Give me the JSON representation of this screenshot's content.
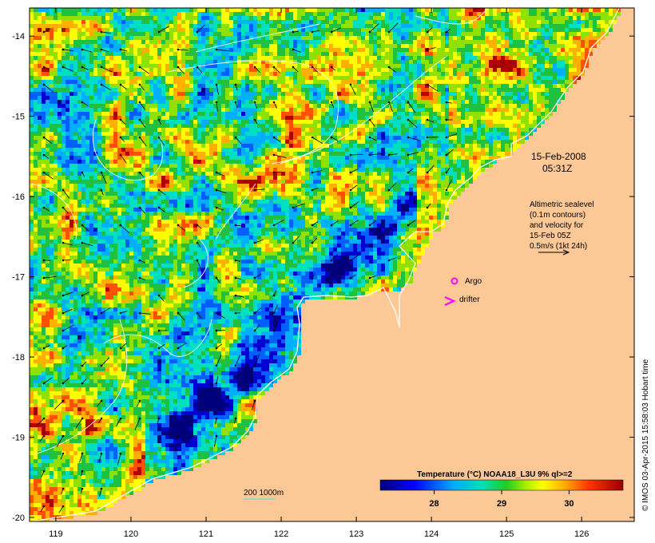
{
  "map": {
    "longitudes": [
      "119",
      "120",
      "121",
      "122",
      "123",
      "124",
      "125",
      "126"
    ],
    "latitudes": [
      "-14",
      "-15",
      "-16",
      "-17",
      "-18",
      "-19",
      "-20"
    ],
    "lon_range": [
      118.65,
      126.7
    ],
    "lat_range": [
      -20.05,
      -13.65
    ],
    "date": "15-Feb-2008",
    "time": "05:31Z",
    "altimetry_note": [
      "Altimetric sealevel",
      "(0.1m contours)",
      "and velocity for",
      "15-Feb 05Z",
      "0.5m/s (1kt 24h)"
    ],
    "argo_label": "Argo",
    "drifter_label": "drifter",
    "depth_scale_label": "200  1000m",
    "land_color": "#fcc896",
    "argo_color": "#ff00ff"
  },
  "colorbar": {
    "title": "Temperature (°C) NOAA18_L3U 9% ql>=2",
    "ticks": [
      "28",
      "29",
      "30"
    ],
    "tick_values": [
      28,
      29,
      30
    ],
    "range": [
      27.2,
      30.8
    ]
  },
  "credit": "© IMOS 03-Apr-2015 15:58:03 Hobart time"
}
